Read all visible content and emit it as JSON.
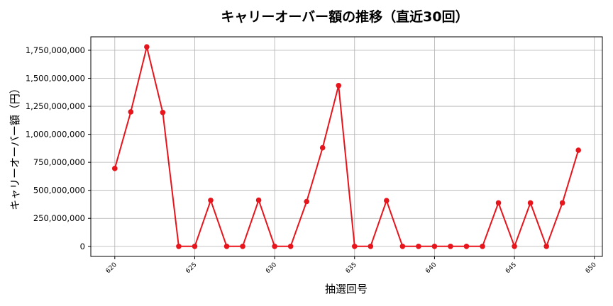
{
  "chart_data": {
    "type": "line",
    "title": "キャリーオーバー額の推移（直近30回）",
    "xlabel": "抽選回号",
    "ylabel": "キャリーオーバー額（円）",
    "x": [
      620,
      621,
      622,
      623,
      624,
      625,
      626,
      627,
      628,
      629,
      630,
      631,
      632,
      633,
      634,
      635,
      636,
      637,
      638,
      639,
      640,
      641,
      642,
      643,
      644,
      645,
      646,
      647,
      648,
      649
    ],
    "values": [
      695000000,
      1200000000,
      1780000000,
      1195000000,
      0,
      0,
      411000000,
      0,
      0,
      412000000,
      0,
      0,
      400000000,
      880000000,
      1435000000,
      0,
      0,
      408000000,
      0,
      0,
      0,
      0,
      0,
      0,
      388000000,
      0,
      388000000,
      0,
      388000000,
      858000000
    ],
    "xlim": [
      618.5,
      650.5
    ],
    "ylim": [
      -90000000,
      1870000000
    ],
    "xticks": [
      620,
      625,
      630,
      635,
      640,
      645,
      650
    ],
    "yticks": [
      0,
      250000000,
      500000000,
      750000000,
      1000000000,
      1250000000,
      1500000000,
      1750000000
    ],
    "ytick_labels": [
      "0",
      "250,000,000",
      "500,000,000",
      "750,000,000",
      "1,000,000,000",
      "1,250,000,000",
      "1,500,000,000",
      "1,750,000,000"
    ],
    "grid": true,
    "line_color": "#e8141c",
    "marker_color": "#e8141c"
  }
}
